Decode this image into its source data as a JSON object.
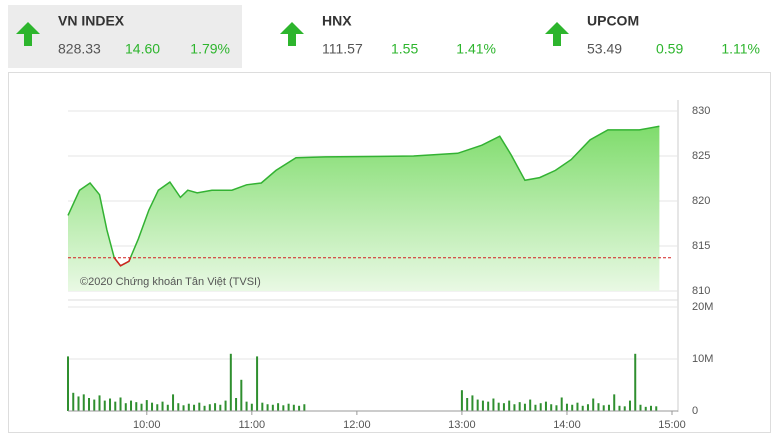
{
  "indices": [
    {
      "name": "VN INDEX",
      "value": "828.33",
      "change": "14.60",
      "percent": "1.79%"
    },
    {
      "name": "HNX",
      "value": "111.57",
      "change": "1.55",
      "percent": "1.41%"
    },
    {
      "name": "UPCOM",
      "value": "53.49",
      "change": "0.59",
      "percent": "1.11%"
    }
  ],
  "chart_data": [
    {
      "type": "area",
      "annotation": "©2020 Chứng khoán Tân Việt (TVSI)",
      "x": [
        9.25,
        9.36,
        9.46,
        9.55,
        9.62,
        9.69,
        9.75,
        9.83,
        9.92,
        10.02,
        10.11,
        10.22,
        10.32,
        10.39,
        10.48,
        10.62,
        10.81,
        10.95,
        11.09,
        11.23,
        11.42,
        11.7,
        12.54,
        12.96,
        13.19,
        13.36,
        13.47,
        13.6,
        13.74,
        13.89,
        14.04,
        14.22,
        14.39,
        14.69,
        14.88
      ],
      "values": [
        818.4,
        821.2,
        822.0,
        820.7,
        816.8,
        813.7,
        812.8,
        813.3,
        815.8,
        819.0,
        821.2,
        822.1,
        820.4,
        821.2,
        820.9,
        821.2,
        821.2,
        821.8,
        822.0,
        823.4,
        824.8,
        824.9,
        825.0,
        825.3,
        826.2,
        827.2,
        825.1,
        822.3,
        822.6,
        823.4,
        824.6,
        826.8,
        827.9,
        827.9,
        828.3
      ],
      "color": "#33b233",
      "below_color": "#d42020",
      "reference": 813.7,
      "xlim": [
        9.25,
        15.0
      ],
      "ylim": [
        810,
        830
      ],
      "yticks": [
        810,
        815,
        820,
        825,
        830
      ],
      "grid": true
    },
    {
      "type": "bar",
      "color": "#2f8f2f",
      "x": [
        9.25,
        9.3,
        9.35,
        9.4,
        9.45,
        9.5,
        9.55,
        9.6,
        9.65,
        9.7,
        9.75,
        9.8,
        9.85,
        9.9,
        9.95,
        10.0,
        10.05,
        10.1,
        10.15,
        10.2,
        10.25,
        10.3,
        10.35,
        10.4,
        10.45,
        10.5,
        10.55,
        10.6,
        10.65,
        10.7,
        10.75,
        10.8,
        10.85,
        10.9,
        10.95,
        11.0,
        11.05,
        11.1,
        11.15,
        11.2,
        11.25,
        11.3,
        11.35,
        11.4,
        11.45,
        11.5,
        13.0,
        13.05,
        13.1,
        13.15,
        13.2,
        13.25,
        13.3,
        13.35,
        13.4,
        13.45,
        13.5,
        13.55,
        13.6,
        13.65,
        13.7,
        13.75,
        13.8,
        13.85,
        13.9,
        13.95,
        14.0,
        14.05,
        14.1,
        14.15,
        14.2,
        14.25,
        14.3,
        14.35,
        14.4,
        14.45,
        14.5,
        14.55,
        14.6,
        14.65,
        14.7,
        14.75,
        14.8,
        14.85
      ],
      "values": [
        10.5,
        3.5,
        2.8,
        3.2,
        2.5,
        2.2,
        3.0,
        2.0,
        2.4,
        1.8,
        2.6,
        1.5,
        2.0,
        1.7,
        1.4,
        2.1,
        1.6,
        1.3,
        1.8,
        1.2,
        3.2,
        1.5,
        1.1,
        1.4,
        1.2,
        1.6,
        1.0,
        1.3,
        1.5,
        1.2,
        2.0,
        11.0,
        2.5,
        6.0,
        1.8,
        1.4,
        10.5,
        1.6,
        1.3,
        1.2,
        1.5,
        1.1,
        1.4,
        1.2,
        1.0,
        1.3,
        4.0,
        2.5,
        3.0,
        2.2,
        2.0,
        1.8,
        2.4,
        1.6,
        1.5,
        2.0,
        1.3,
        1.7,
        1.4,
        2.2,
        1.2,
        1.5,
        1.8,
        1.3,
        1.1,
        2.6,
        1.4,
        1.2,
        1.6,
        1.0,
        1.3,
        2.4,
        1.5,
        1.1,
        1.2,
        3.2,
        1.0,
        0.9,
        2.0,
        11.0,
        1.2,
        0.8,
        1.0,
        0.9
      ],
      "xlim": [
        9.25,
        15.0
      ],
      "ylim": [
        0,
        20
      ],
      "yticks": [
        0,
        {
          "value": 10,
          "label": "10M"
        },
        {
          "value": 20,
          "label": "20M"
        }
      ],
      "xticks": [
        {
          "value": 10,
          "label": "10:00"
        },
        {
          "value": 11,
          "label": "11:00"
        },
        {
          "value": 12,
          "label": "12:00"
        },
        {
          "value": 13,
          "label": "13:00"
        },
        {
          "value": 14,
          "label": "14:00"
        },
        {
          "value": 15,
          "label": "15:00"
        }
      ],
      "grid": true
    }
  ]
}
